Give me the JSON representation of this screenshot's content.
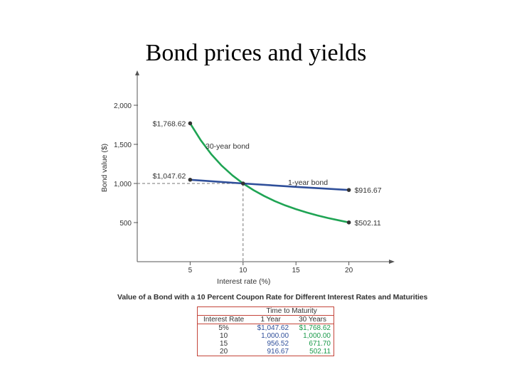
{
  "slide_title": "Bond prices and yields",
  "chart_data": {
    "type": "line",
    "xlabel": "Interest rate (%)",
    "ylabel": "Bond value ($)",
    "xlim": [
      0,
      25
    ],
    "ylim": [
      0,
      2400
    ],
    "xticks": [
      5,
      10,
      15,
      20
    ],
    "xtick_labels": [
      "5",
      "10",
      "15",
      "20"
    ],
    "yticks": [
      500,
      1000,
      1500,
      2000
    ],
    "ytick_labels": [
      "500",
      "1,000",
      "1,500",
      "2,000"
    ],
    "grid": false,
    "series": [
      {
        "name": "30-year bond",
        "color": "#1fa454",
        "x": [
          5,
          6,
          7,
          8,
          9,
          10,
          11,
          12,
          13,
          14,
          15,
          16,
          17,
          18,
          19,
          20
        ],
        "values": [
          1768.62,
          1552.8,
          1372.3,
          1225.2,
          1102.8,
          1000.0,
          913.2,
          838.9,
          774.8,
          719.3,
          671.7,
          629.3,
          592.0,
          559.1,
          529.7,
          502.11
        ]
      },
      {
        "name": "1-year bond",
        "color": "#2f4f9a",
        "x": [
          5,
          10,
          15,
          20
        ],
        "values": [
          1047.62,
          1000.0,
          956.52,
          916.67
        ]
      }
    ],
    "point_labels": [
      {
        "text": "$1,768.62",
        "x": 5,
        "y": 1768.62
      },
      {
        "text": "$1,047.62",
        "x": 5,
        "y": 1047.62
      },
      {
        "text": "$916.67",
        "x": 20,
        "y": 916.67
      },
      {
        "text": "$502.11",
        "x": 20,
        "y": 502.11
      }
    ],
    "reference_point": {
      "x": 10,
      "y": 1000
    }
  },
  "caption": "Value of a Bond with a 10 Percent Coupon Rate for Different Interest Rates and Maturities",
  "table": {
    "group_header": "Time to Maturity",
    "columns": [
      "Interest Rate",
      "1 Year",
      "30 Years"
    ],
    "rows": [
      [
        "5%",
        "$1,047.62",
        "$1,768.62"
      ],
      [
        "10",
        "1,000.00",
        "1,000.00"
      ],
      [
        "15",
        "956.52",
        "671.70"
      ],
      [
        "20",
        "916.67",
        "502.11"
      ]
    ]
  }
}
